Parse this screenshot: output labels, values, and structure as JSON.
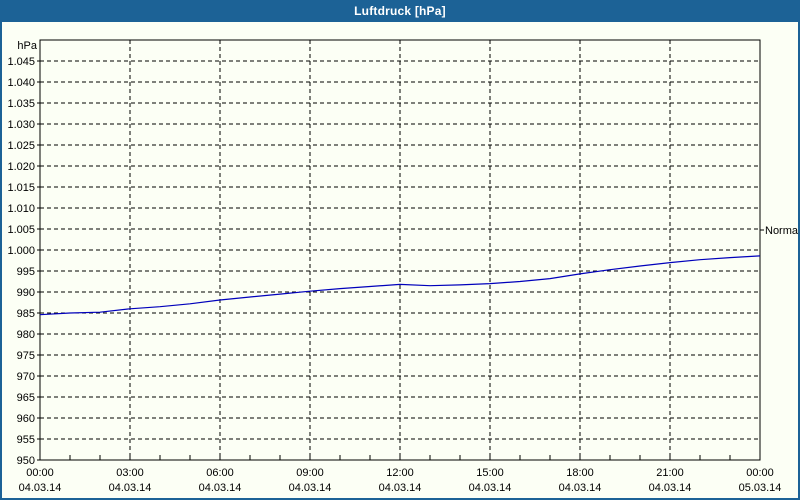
{
  "window": {
    "title": "Luftdruck [hPa]"
  },
  "colors": {
    "titlebar": "#1c6296",
    "border": "#1c6296",
    "background": "#fcfff5",
    "grid": "#000000",
    "frame": "#000000",
    "series_line": "#0000bb",
    "title_text": "#ffffff",
    "label_text": "#000000"
  },
  "chart_data": {
    "type": "line",
    "title": "Luftdruck [hPa]",
    "unit_label": "hPa",
    "xlim_hours": [
      0,
      24
    ],
    "ylim": [
      950,
      1050
    ],
    "grid": true,
    "grid_style": "dashed",
    "legend_position": "none",
    "y_ticks": [
      {
        "label": "1.045",
        "value": 1045
      },
      {
        "label": "1.040",
        "value": 1040
      },
      {
        "label": "1.035",
        "value": 1035
      },
      {
        "label": "1.030",
        "value": 1030
      },
      {
        "label": "1.025",
        "value": 1025
      },
      {
        "label": "1.020",
        "value": 1020
      },
      {
        "label": "1.015",
        "value": 1015
      },
      {
        "label": "1.010",
        "value": 1010
      },
      {
        "label": "1.005",
        "value": 1005
      },
      {
        "label": "1.000",
        "value": 1000
      },
      {
        "label": "995",
        "value": 995
      },
      {
        "label": "990",
        "value": 990
      },
      {
        "label": "985",
        "value": 985
      },
      {
        "label": "980",
        "value": 980
      },
      {
        "label": "975",
        "value": 975
      },
      {
        "label": "970",
        "value": 970
      },
      {
        "label": "965",
        "value": 965
      },
      {
        "label": "960",
        "value": 960
      },
      {
        "label": "955",
        "value": 955
      },
      {
        "label": "950",
        "value": 950
      }
    ],
    "x_major_ticks": [
      {
        "hour": 0,
        "time": "00:00",
        "date": "04.03.14"
      },
      {
        "hour": 3,
        "time": "03:00",
        "date": "04.03.14"
      },
      {
        "hour": 6,
        "time": "06:00",
        "date": "04.03.14"
      },
      {
        "hour": 9,
        "time": "09:00",
        "date": "04.03.14"
      },
      {
        "hour": 12,
        "time": "12:00",
        "date": "04.03.14"
      },
      {
        "hour": 15,
        "time": "15:00",
        "date": "04.03.14"
      },
      {
        "hour": 18,
        "time": "18:00",
        "date": "04.03.14"
      },
      {
        "hour": 21,
        "time": "21:00",
        "date": "04.03.14"
      },
      {
        "hour": 24,
        "time": "00:00",
        "date": "05.03.14"
      }
    ],
    "x_minor_tick_every_hours": 1,
    "annotation": {
      "label": "Normal",
      "value": 1004.8
    },
    "series": [
      {
        "name": "Luftdruck",
        "color": "#0000bb",
        "x_hours": [
          0,
          1,
          2,
          3,
          4,
          5,
          6,
          7,
          8,
          9,
          10,
          11,
          12,
          13,
          14,
          15,
          16,
          17,
          18,
          19,
          20,
          21,
          22,
          23,
          24
        ],
        "values": [
          984.6,
          985.0,
          985.2,
          986.0,
          986.5,
          987.2,
          988.1,
          988.8,
          989.5,
          990.2,
          990.8,
          991.3,
          991.8,
          991.5,
          991.7,
          992.0,
          992.5,
          993.2,
          994.3,
          995.3,
          996.2,
          997.0,
          997.7,
          998.2,
          998.6
        ]
      }
    ]
  }
}
